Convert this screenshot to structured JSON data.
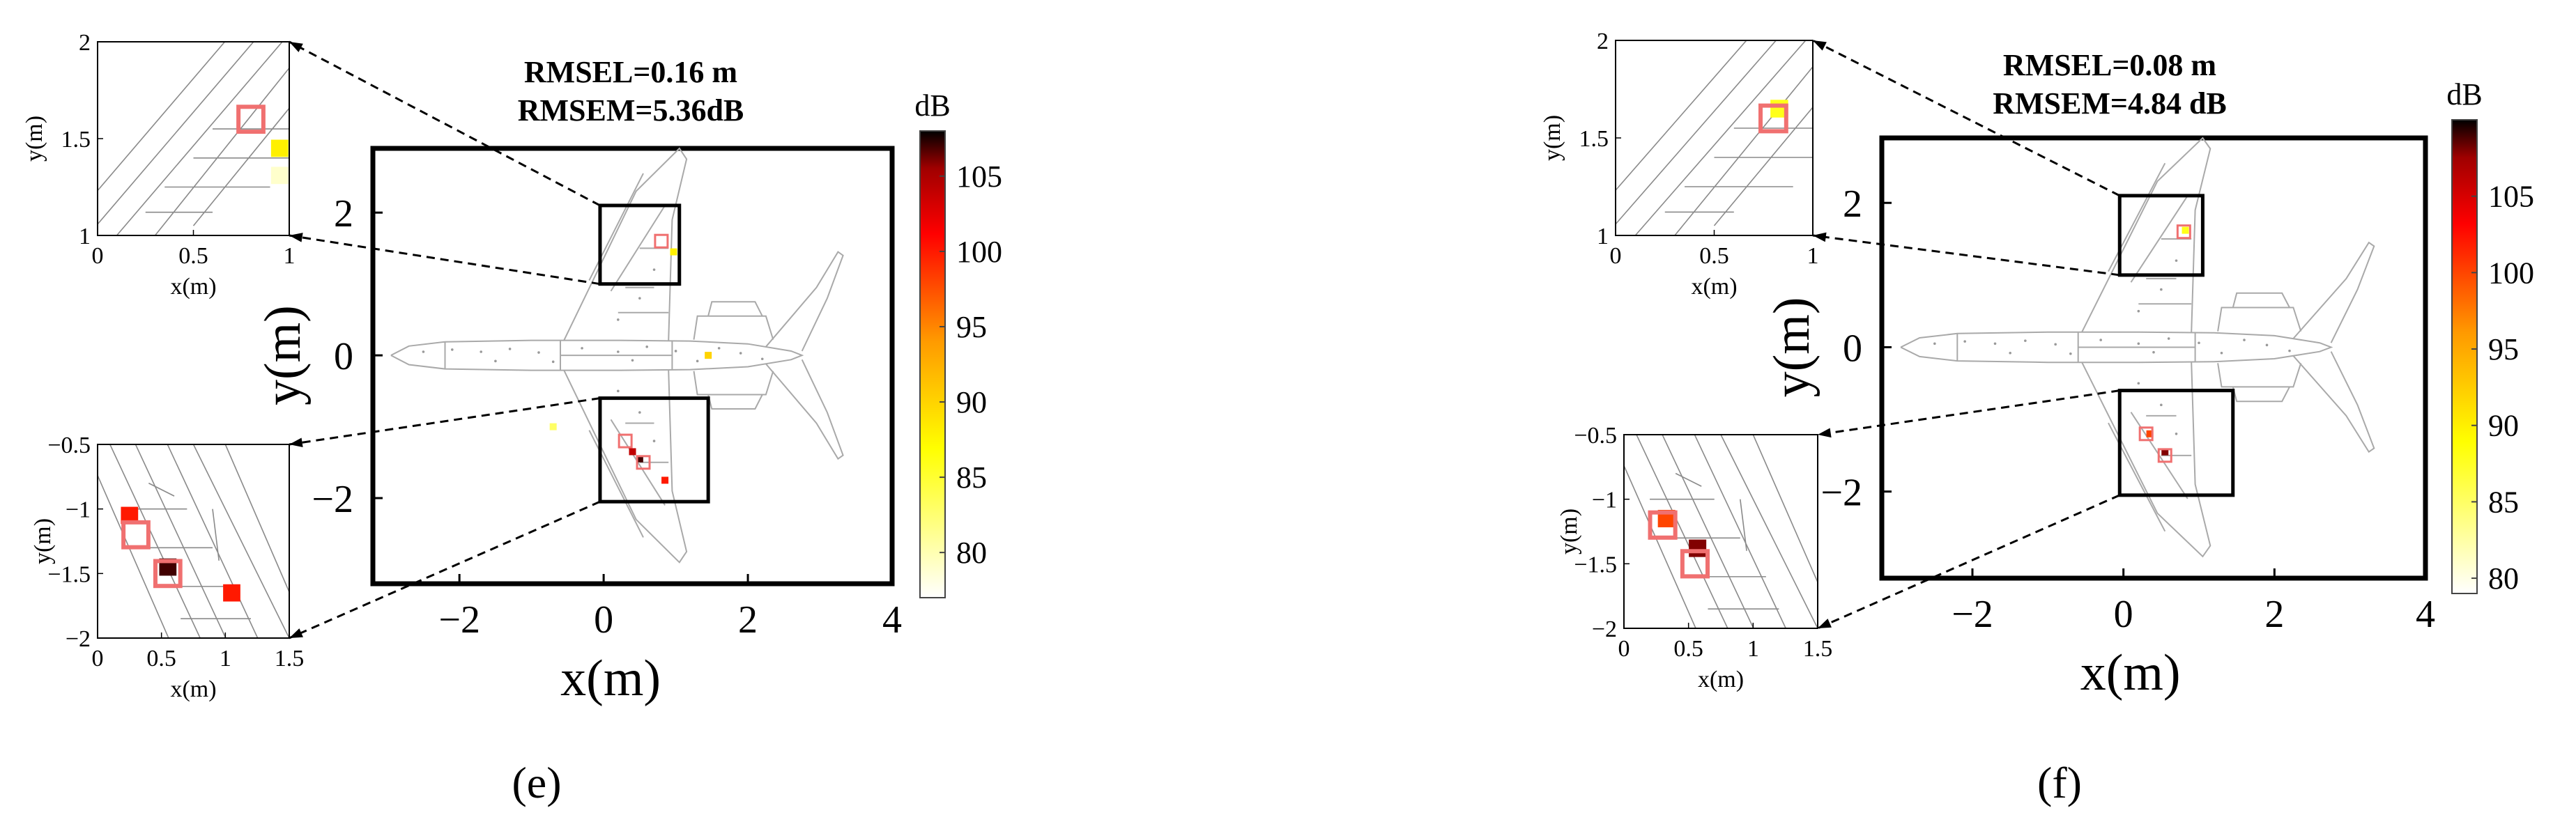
{
  "chart_data": [
    {
      "type": "scatter",
      "panel_label": "(e)",
      "title_lines": [
        "RMSEL=0.16 m",
        "RMSEM=5.36dB"
      ],
      "xlabel": "x(m)",
      "ylabel": "y(m)",
      "xlim": [
        -3.2,
        4
      ],
      "ylim": [
        -3.2,
        2.9
      ],
      "xticks": [
        "−2",
        "0",
        "2",
        "4"
      ],
      "yticks": [
        "2",
        "0",
        "−2"
      ],
      "colorbar": {
        "label": "dB",
        "range": [
          77,
          108
        ],
        "ticks": [
          "105",
          "100",
          "95",
          "90",
          "85",
          "80"
        ]
      },
      "true_sources": [
        [
          0.8,
          1.6
        ],
        [
          0.55,
          -1.5
        ],
        [
          0.3,
          -1.2
        ]
      ],
      "estimated_sources": [
        {
          "x": 0.97,
          "y": 1.45,
          "level_db": 88
        },
        {
          "x": 1.45,
          "y": 0.0,
          "level_db": 90
        },
        {
          "x": -0.7,
          "y": -1.0,
          "level_db": 83
        },
        {
          "x": 0.4,
          "y": -1.35,
          "level_db": 104
        },
        {
          "x": 0.5,
          "y": -1.45,
          "level_db": 107
        },
        {
          "x": 0.85,
          "y": -1.75,
          "level_db": 100
        }
      ],
      "inset_top": {
        "xlabel": "x(m)",
        "ylabel": "y(m)",
        "xlim": [
          0,
          1
        ],
        "ylim": [
          1,
          2
        ],
        "xticks": [
          "0",
          "0.5",
          "1"
        ],
        "yticks": [
          "2",
          "1.5",
          "1"
        ],
        "true_sources": [
          [
            0.8,
            1.6
          ]
        ],
        "estimated_sources": [
          {
            "x": 0.95,
            "y": 1.45,
            "level_db": 88
          },
          {
            "x": 0.95,
            "y": 1.31,
            "level_db": 79
          }
        ]
      },
      "inset_bottom": {
        "xlabel": "x(m)",
        "ylabel": "y(m)",
        "xlim": [
          0,
          1.5
        ],
        "ylim": [
          -2,
          -0.5
        ],
        "xticks": [
          "0",
          "0.5",
          "1",
          "1.5"
        ],
        "yticks": [
          "−0.5",
          "−1",
          "−1.5",
          "−2"
        ],
        "true_sources": [
          [
            0.3,
            -1.2
          ],
          [
            0.55,
            -1.5
          ]
        ],
        "estimated_sources": [
          {
            "x": 0.25,
            "y": -1.05,
            "level_db": 100
          },
          {
            "x": 0.55,
            "y": -1.45,
            "level_db": 107
          },
          {
            "x": 1.05,
            "y": -1.65,
            "level_db": 100
          }
        ]
      }
    },
    {
      "type": "scatter",
      "panel_label": "(f)",
      "title_lines": [
        "RMSEL=0.08 m",
        "RMSEM=4.84 dB"
      ],
      "xlabel": "x(m)",
      "ylabel": "y(m)",
      "xlim": [
        -3.2,
        4
      ],
      "ylim": [
        -3.2,
        2.9
      ],
      "xticks": [
        "−2",
        "0",
        "2",
        "4"
      ],
      "yticks": [
        "2",
        "0",
        "−2"
      ],
      "colorbar": {
        "label": "dB",
        "range": [
          79,
          110
        ],
        "ticks": [
          "105",
          "100",
          "95",
          "90",
          "85",
          "80"
        ]
      },
      "true_sources": [
        [
          0.8,
          1.6
        ],
        [
          0.55,
          -1.5
        ],
        [
          0.3,
          -1.2
        ]
      ],
      "estimated_sources": [
        {
          "x": 0.82,
          "y": 1.62,
          "level_db": 88
        },
        {
          "x": 0.35,
          "y": -1.2,
          "level_db": 100
        },
        {
          "x": 0.55,
          "y": -1.45,
          "level_db": 108
        }
      ],
      "inset_top": {
        "xlabel": "x(m)",
        "ylabel": "y(m)",
        "xlim": [
          0,
          1
        ],
        "ylim": [
          1,
          2
        ],
        "xticks": [
          "0",
          "0.5",
          "1"
        ],
        "yticks": [
          "2",
          "1.5",
          "1"
        ],
        "true_sources": [
          [
            0.8,
            1.6
          ]
        ],
        "estimated_sources": [
          {
            "x": 0.83,
            "y": 1.65,
            "level_db": 88
          }
        ]
      },
      "inset_bottom": {
        "xlabel": "x(m)",
        "ylabel": "y(m)",
        "xlim": [
          0,
          1.5
        ],
        "ylim": [
          -2,
          -0.5
        ],
        "xticks": [
          "0",
          "0.5",
          "1",
          "1.5"
        ],
        "yticks": [
          "−0.5",
          "−1",
          "−1.5",
          "−2"
        ],
        "true_sources": [
          [
            0.3,
            -1.2
          ],
          [
            0.55,
            -1.5
          ]
        ],
        "estimated_sources": [
          {
            "x": 0.33,
            "y": -1.15,
            "level_db": 100
          },
          {
            "x": 0.57,
            "y": -1.38,
            "level_db": 108
          }
        ]
      }
    }
  ]
}
